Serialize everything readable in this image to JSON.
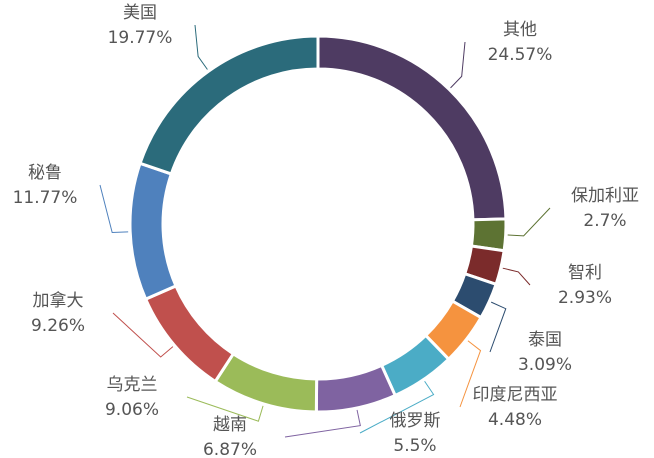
{
  "chart_data": {
    "type": "donut",
    "categories": [
      "其他",
      "保加利亚",
      "智利",
      "泰国",
      "印度尼西亚",
      "俄罗斯",
      "越南",
      "乌克兰",
      "加拿大",
      "秘鲁",
      "美国"
    ],
    "values": [
      24.57,
      2.7,
      2.93,
      3.09,
      4.48,
      5.5,
      6.87,
      9.06,
      9.26,
      11.77,
      19.77
    ],
    "value_labels": [
      "24.57%",
      "2.7%",
      "2.93%",
      "3.09%",
      "4.48%",
      "5.5%",
      "6.87%",
      "9.06%",
      "9.26%",
      "11.77%",
      "19.77%"
    ],
    "colors": [
      "#4e3b62",
      "#5d7333",
      "#7b2b2b",
      "#2c4c6f",
      "#f5933f",
      "#4bacc6",
      "#7f63a1",
      "#9bbb59",
      "#c0504d",
      "#4f81bd",
      "#2b6b7b"
    ]
  }
}
